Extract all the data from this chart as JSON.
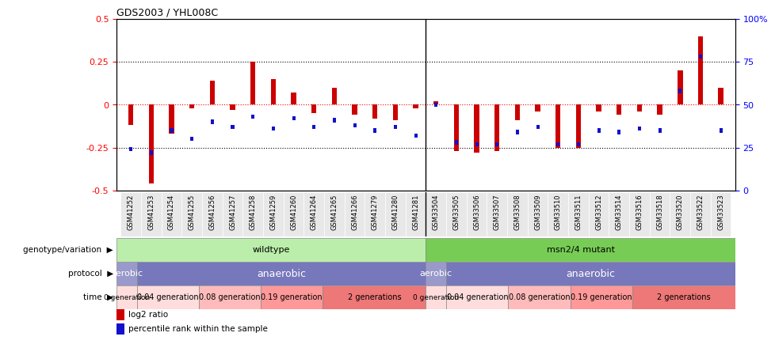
{
  "title": "GDS2003 / YHL008C",
  "samples": [
    "GSM41252",
    "GSM41253",
    "GSM41254",
    "GSM41255",
    "GSM41256",
    "GSM41257",
    "GSM41258",
    "GSM41259",
    "GSM41260",
    "GSM41264",
    "GSM41265",
    "GSM41266",
    "GSM41279",
    "GSM41280",
    "GSM41281",
    "GSM33504",
    "GSM33505",
    "GSM33506",
    "GSM33507",
    "GSM33508",
    "GSM33509",
    "GSM33510",
    "GSM33511",
    "GSM33512",
    "GSM33514",
    "GSM33516",
    "GSM33518",
    "GSM33520",
    "GSM33522",
    "GSM33523"
  ],
  "log2_ratio": [
    -0.12,
    -0.46,
    -0.17,
    -0.02,
    0.14,
    -0.03,
    0.25,
    0.15,
    0.07,
    -0.05,
    0.1,
    -0.06,
    -0.08,
    -0.09,
    -0.02,
    0.02,
    -0.27,
    -0.28,
    -0.27,
    -0.09,
    -0.04,
    -0.25,
    -0.25,
    -0.04,
    -0.06,
    -0.04,
    -0.06,
    0.2,
    0.4,
    0.1
  ],
  "percentile": [
    24,
    22,
    35,
    30,
    40,
    37,
    43,
    36,
    42,
    37,
    41,
    38,
    35,
    37,
    32,
    50,
    28,
    27,
    27,
    34,
    37,
    27,
    27,
    35,
    34,
    36,
    35,
    58,
    78,
    35
  ],
  "ylim_left": [
    -0.5,
    0.5
  ],
  "ylim_right": [
    0,
    100
  ],
  "yticks_left": [
    -0.5,
    -0.25,
    0.0,
    0.25,
    0.5
  ],
  "ytick_labels_left": [
    "-0.5",
    "-0.25",
    "0",
    "0.25",
    "0.5"
  ],
  "yticks_right": [
    0,
    25,
    50,
    75,
    100
  ],
  "ytick_labels_right": [
    "0",
    "25",
    "50",
    "75",
    "100%"
  ],
  "bar_color": "#cc0000",
  "dot_color": "#1111cc",
  "genotype_wildtype_label": "wildtype",
  "genotype_mutant_label": "msn2/4 mutant",
  "genotype_wildtype_color": "#bbeeaa",
  "genotype_mutant_color": "#77cc55",
  "protocol_aerobic_color": "#9999cc",
  "protocol_anaerobic_color": "#7777bb",
  "time_colors": [
    "#ffdddd",
    "#ffdddd",
    "#ffbbbb",
    "#ff9999",
    "#ee7777"
  ],
  "time_labels": [
    "0 generation",
    "0.04 generation",
    "0.08 generation",
    "0.19 generation",
    "2 generations"
  ],
  "time_counts": [
    1,
    3,
    3,
    3,
    5
  ],
  "wildtype_count": 15,
  "mutant_count": 15
}
